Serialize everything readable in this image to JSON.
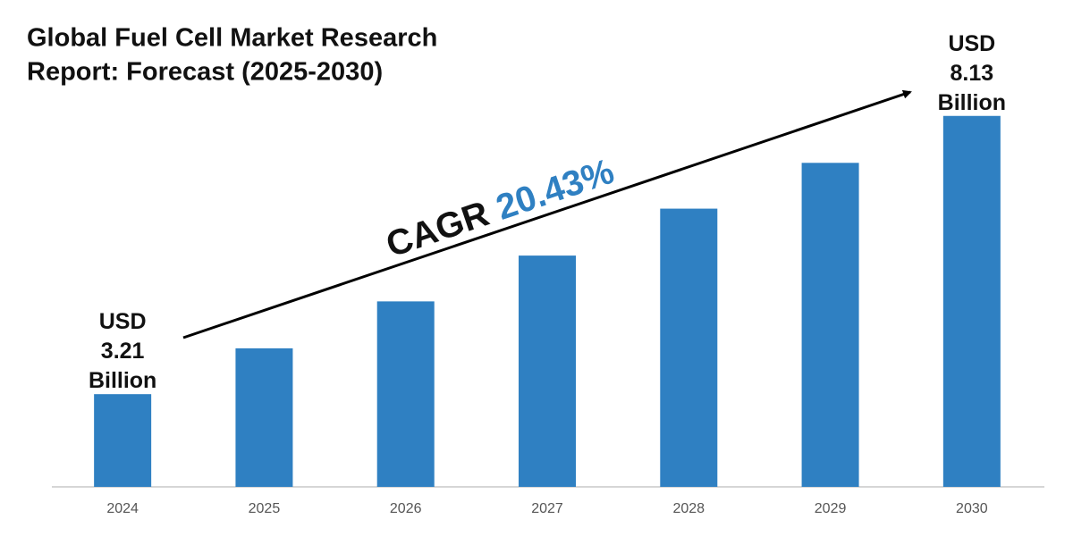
{
  "chart_data": {
    "type": "bar",
    "title": [
      "Global Fuel Cell Market Research",
      "Report: Forecast (2025-2030)"
    ],
    "categories": [
      "2024",
      "2025",
      "2026",
      "2027",
      "2028",
      "2029",
      "2030"
    ],
    "values": [
      3.21,
      4.02,
      4.85,
      5.66,
      6.49,
      7.3,
      8.13
    ],
    "value_labels": [
      "USD 3.21 Billion",
      null,
      null,
      null,
      null,
      null,
      "USD 8.13 Billion"
    ],
    "color": "#2f80c2",
    "ylim": [
      1.57,
      8.6
    ],
    "annotation": {
      "label": "CAGR",
      "value": "20.43%",
      "value_color": "#2f80c2"
    }
  }
}
